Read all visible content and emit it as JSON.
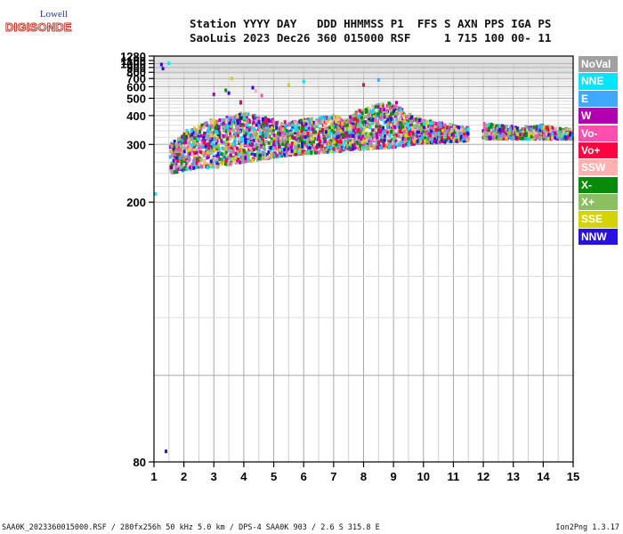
{
  "logo": {
    "top": "Lowell",
    "bottom": "DIGISONDE"
  },
  "header": {
    "line1": "Station YYYY DAY   DDD HHMMSS P1  FFS S AXN PPS IGA PS",
    "line2": "SaoLuis 2023 Dec26 360 015000 RSF     1 715 100 00- 11"
  },
  "legend": [
    {
      "label": "NoVal",
      "color": "#a0a0a0"
    },
    {
      "label": "NNE",
      "color": "#00e5ff"
    },
    {
      "label": "E",
      "color": "#3fa8ff"
    },
    {
      "label": "W",
      "color": "#b000b0"
    },
    {
      "label": "Vo-",
      "color": "#ff50b0"
    },
    {
      "label": "Vo+",
      "color": "#ff0040"
    },
    {
      "label": "SSW",
      "color": "#ffb0b0"
    },
    {
      "label": "X-",
      "color": "#0a8a0a"
    },
    {
      "label": "X+",
      "color": "#8ac060"
    },
    {
      "label": "SSE",
      "color": "#d4d400"
    },
    {
      "label": "NNW",
      "color": "#2810e0"
    }
  ],
  "footer": {
    "left": "SAA0K_2023360015000.RSF / 280fx256h 50 kHz 5.0 km / DPS-4 SAA0K 903 / 2.6 S 315.8 E",
    "right": "Ion2Png 1.3.17"
  },
  "chart_data": {
    "type": "scatter",
    "title": "",
    "xlabel": "",
    "ylabel": "",
    "xlim": [
      1,
      15
    ],
    "ylim": [
      80,
      1280
    ],
    "x_ticks": [
      1,
      2,
      3,
      4,
      5,
      6,
      7,
      8,
      9,
      10,
      11,
      12,
      13,
      14,
      15
    ],
    "y_ticks": [
      80,
      200,
      300,
      400,
      500,
      600,
      700,
      800,
      900,
      1000,
      1100,
      1280
    ],
    "grid": true,
    "legend_position": "right",
    "y_scale": "reciprocal",
    "note_series": "Echo pixels; each series lists [frequency MHz, virtual height km] points",
    "series": [
      {
        "name": "NNW",
        "points": [
          [
            1.6,
            250
          ],
          [
            1.8,
            270
          ],
          [
            2.0,
            255
          ],
          [
            2.2,
            290
          ],
          [
            2.4,
            300
          ],
          [
            2.7,
            310
          ],
          [
            3.0,
            270
          ],
          [
            3.2,
            330
          ],
          [
            3.5,
            290
          ],
          [
            3.8,
            340
          ],
          [
            4.2,
            300
          ],
          [
            4.6,
            320
          ],
          [
            5.0,
            300
          ],
          [
            5.5,
            330
          ],
          [
            6.0,
            310
          ],
          [
            6.5,
            320
          ],
          [
            7.0,
            350
          ],
          [
            7.6,
            360
          ],
          [
            8.2,
            380
          ],
          [
            8.8,
            420
          ],
          [
            9.2,
            340
          ],
          [
            10.0,
            330
          ],
          [
            11.0,
            335
          ],
          [
            12.0,
            340
          ],
          [
            13.0,
            330
          ],
          [
            14.0,
            330
          ],
          [
            14.8,
            330
          ],
          [
            1.25,
            975
          ],
          [
            1.3,
            875
          ],
          [
            1.4,
            82
          ],
          [
            3.5,
            540
          ],
          [
            3.9,
            470
          ],
          [
            4.3,
            590
          ]
        ]
      },
      {
        "name": "Vo+",
        "points": [
          [
            2.5,
            290
          ],
          [
            3.2,
            320
          ],
          [
            4.0,
            360
          ],
          [
            4.8,
            330
          ],
          [
            5.6,
            320
          ],
          [
            6.5,
            330
          ],
          [
            7.2,
            360
          ],
          [
            7.8,
            370
          ],
          [
            8.3,
            390
          ],
          [
            8.8,
            450
          ],
          [
            9.0,
            400
          ],
          [
            10.2,
            340
          ],
          [
            11.0,
            330
          ],
          [
            12.5,
            340
          ],
          [
            13.6,
            330
          ],
          [
            14.4,
            330
          ],
          [
            8.0,
            620
          ],
          [
            3.9,
            475
          ]
        ]
      },
      {
        "name": "Vo-",
        "points": [
          [
            2.8,
            300
          ],
          [
            3.6,
            350
          ],
          [
            4.4,
            340
          ],
          [
            5.2,
            320
          ],
          [
            6.2,
            310
          ],
          [
            7.0,
            330
          ],
          [
            7.9,
            380
          ],
          [
            8.6,
            420
          ],
          [
            9.3,
            360
          ],
          [
            10.5,
            320
          ],
          [
            11.3,
            330
          ],
          [
            13.2,
            340
          ],
          [
            4.6,
            520
          ]
        ]
      },
      {
        "name": "W",
        "points": [
          [
            2.3,
            320
          ],
          [
            3.1,
            360
          ],
          [
            4.1,
            390
          ],
          [
            5.4,
            330
          ],
          [
            6.8,
            340
          ],
          [
            7.6,
            330
          ],
          [
            8.4,
            400
          ],
          [
            9.1,
            470
          ],
          [
            10.8,
            330
          ],
          [
            12.2,
            335
          ],
          [
            3.0,
            530
          ]
        ]
      },
      {
        "name": "NNE",
        "points": [
          [
            1.5,
            1010
          ],
          [
            2.1,
            340
          ],
          [
            3.3,
            380
          ],
          [
            4.5,
            360
          ],
          [
            5.7,
            350
          ],
          [
            7.1,
            330
          ],
          [
            8.7,
            370
          ],
          [
            9.6,
            380
          ],
          [
            10.3,
            360
          ],
          [
            11.1,
            345
          ],
          [
            12.8,
            330
          ],
          [
            1.05,
            210
          ],
          [
            6.0,
            660
          ]
        ]
      },
      {
        "name": "E",
        "points": [
          [
            2.0,
            300
          ],
          [
            3.0,
            320
          ],
          [
            4.2,
            350
          ],
          [
            5.0,
            340
          ],
          [
            6.4,
            330
          ],
          [
            7.4,
            345
          ],
          [
            8.5,
            680
          ],
          [
            9.7,
            330
          ],
          [
            11.2,
            320
          ],
          [
            13.4,
            325
          ],
          [
            14.2,
            335
          ]
        ]
      },
      {
        "name": "X-",
        "points": [
          [
            2.6,
            360
          ],
          [
            3.7,
            390
          ],
          [
            4.7,
            370
          ],
          [
            6.1,
            330
          ],
          [
            7.3,
            340
          ],
          [
            8.1,
            330
          ],
          [
            9.4,
            340
          ],
          [
            10.6,
            330
          ],
          [
            12.1,
            320
          ],
          [
            13.3,
            325
          ],
          [
            14.6,
            320
          ],
          [
            3.4,
            565
          ]
        ]
      },
      {
        "name": "X+",
        "points": [
          [
            2.9,
            380
          ],
          [
            3.9,
            410
          ],
          [
            4.9,
            380
          ],
          [
            5.9,
            340
          ],
          [
            7.5,
            335
          ],
          [
            8.9,
            350
          ],
          [
            10.1,
            340
          ],
          [
            11.4,
            320
          ],
          [
            13.8,
            330
          ],
          [
            14.9,
            325
          ]
        ]
      },
      {
        "name": "SSE",
        "points": [
          [
            3.1,
            330
          ],
          [
            4.3,
            400
          ],
          [
            5.1,
            360
          ],
          [
            6.3,
            330
          ],
          [
            7.8,
            330
          ],
          [
            9.0,
            360
          ],
          [
            10.4,
            330
          ],
          [
            12.6,
            330
          ],
          [
            14.1,
            320
          ],
          [
            3.6,
            700
          ],
          [
            5.5,
            620
          ]
        ]
      },
      {
        "name": "SSW",
        "points": [
          [
            2.4,
            310
          ],
          [
            4.0,
            340
          ],
          [
            5.3,
            320
          ],
          [
            6.6,
            320
          ],
          [
            8.0,
            350
          ],
          [
            9.5,
            330
          ],
          [
            10.9,
            325
          ],
          [
            13.0,
            335
          ],
          [
            14.5,
            330
          ],
          [
            4.4,
            560
          ]
        ]
      },
      {
        "name": "NoVal",
        "points": [
          [
            3.4,
            300
          ],
          [
            5.8,
            310
          ],
          [
            8.3,
            320
          ],
          [
            10.7,
            320
          ],
          [
            12.4,
            330
          ]
        ]
      }
    ]
  }
}
